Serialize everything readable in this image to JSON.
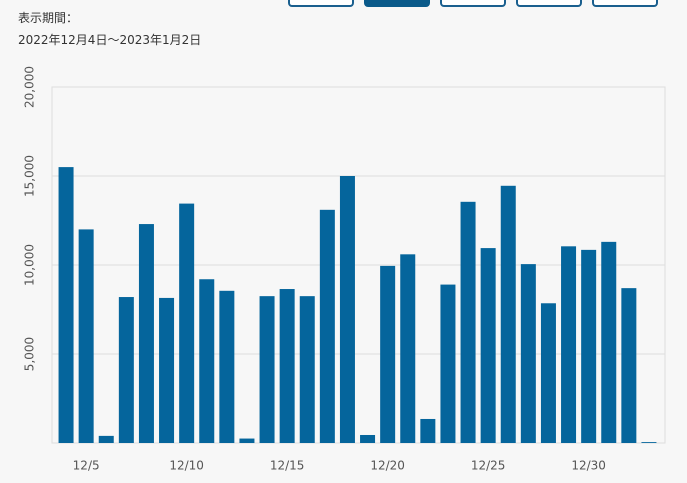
{
  "header": {
    "label": "表示期間：",
    "period": "2022年12月4日〜2023年1月2日"
  },
  "chart_data": {
    "type": "bar",
    "color": "#05659c",
    "grid": true,
    "categories": [
      null,
      "12/5",
      null,
      null,
      null,
      null,
      "12/10",
      null,
      null,
      null,
      null,
      "12/15",
      null,
      null,
      null,
      null,
      "12/20",
      null,
      null,
      null,
      null,
      "12/25",
      null,
      null,
      null,
      null,
      "12/30",
      null,
      null,
      null
    ],
    "values": [
      15500,
      12000,
      400,
      8200,
      12300,
      8150,
      13450,
      9200,
      8550,
      250,
      8250,
      8650,
      8250,
      13100,
      15000,
      450,
      9950,
      10600,
      1350,
      8900,
      13550,
      10950,
      14450,
      10050,
      7850,
      11050,
      10850,
      11300,
      8700,
      50
    ],
    "ylim": [
      0,
      20000
    ],
    "yticks": [
      0,
      {
        "value": 5000,
        "label": "5,000"
      },
      {
        "value": 10000,
        "label": "10,000"
      },
      {
        "value": 15000,
        "label": "15,000"
      },
      {
        "value": 20000,
        "label": "20,000"
      }
    ]
  }
}
